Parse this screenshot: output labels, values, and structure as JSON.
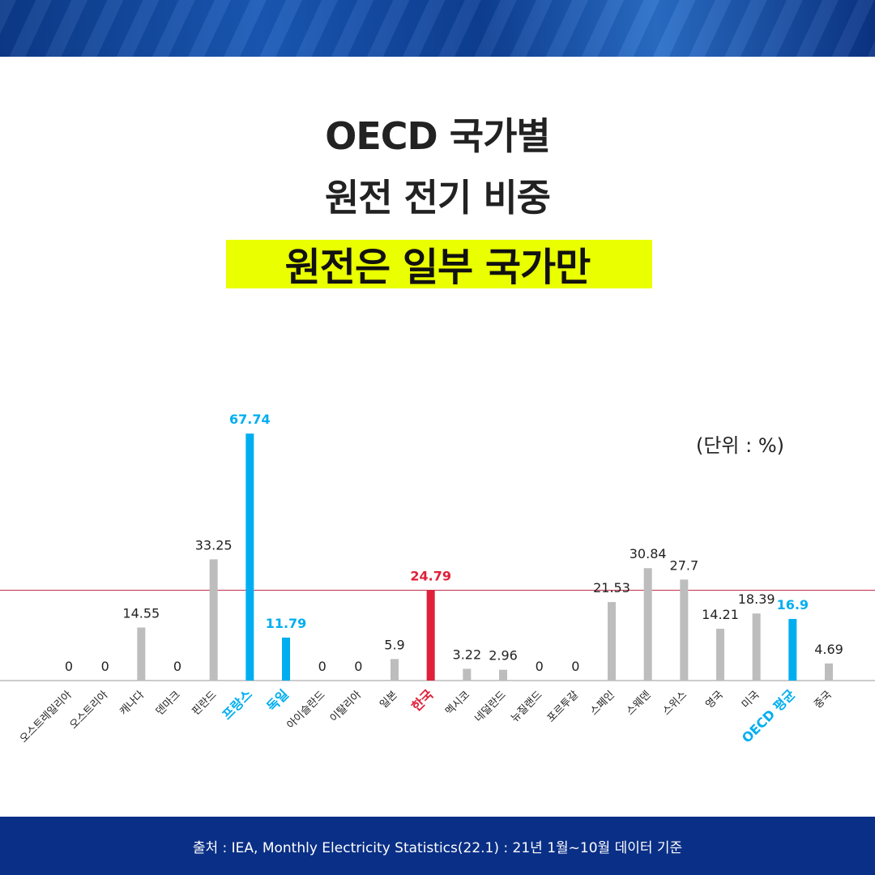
{
  "title": {
    "line1": "OECD 국가별",
    "line2": "원전 전기 비중",
    "highlight": "원전은 일부 국가만"
  },
  "unit_label": "(단위 : %)",
  "source": "출처 : IEA, Monthly Electricity Statistics(22.1) : 21년 1월~10월 데이터 기준",
  "colors": {
    "default_bar": "#bdbdbd",
    "highlight_blue": "#00aef0",
    "highlight_red": "#e0203a",
    "reference_line": "#c0304a",
    "highlight_box": "#eaff00"
  },
  "chart_data": {
    "type": "bar",
    "categories": [
      "오스트레일리아",
      "오스트리아",
      "캐나다",
      "덴마크",
      "핀란드",
      "프랑스",
      "독일",
      "아이슬란드",
      "이탈리아",
      "일본",
      "한국",
      "멕시코",
      "네덜란드",
      "뉴질랜드",
      "포르투갈",
      "스페인",
      "스웨덴",
      "스위스",
      "영국",
      "미국",
      "OECD 평균",
      "중국"
    ],
    "values": [
      0,
      0,
      14.55,
      0,
      33.25,
      67.74,
      11.79,
      0,
      0,
      5.9,
      24.79,
      3.22,
      2.96,
      0,
      0,
      21.53,
      30.84,
      27.7,
      14.21,
      18.39,
      16.9,
      4.69
    ],
    "value_labels": [
      "0",
      "0",
      "14.55",
      "0",
      "33.25",
      "67.74",
      "11.79",
      "0",
      "0",
      "5.9",
      "24.79",
      "3.22",
      "2.96",
      "0",
      "0",
      "21.53",
      "30.84",
      "27.7",
      "14.21",
      "18.39",
      "16.9",
      "4.69"
    ],
    "highlight": {
      "프랑스": "blue",
      "독일": "blue",
      "OECD 평균": "blue",
      "한국": "red"
    },
    "reference_line": 24.79,
    "ylabel": "",
    "xlabel": "",
    "ylim": [
      0,
      70
    ],
    "grid": false,
    "legend": "none"
  }
}
